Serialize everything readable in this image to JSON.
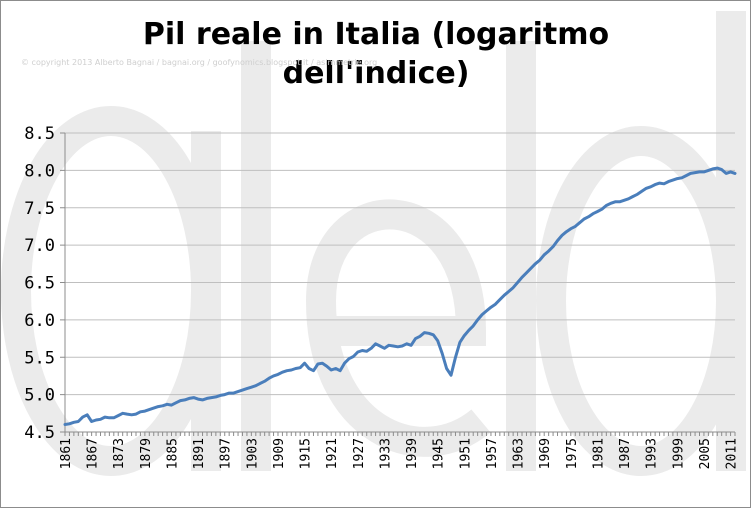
{
  "colors": {
    "series": "#4a7ebb",
    "grid": "#bfbfbf",
    "axis": "#8c8c8c",
    "watermark": "#ebebeb"
  },
  "header": {
    "title": "Pil reale in Italia (logaritmo dell'indice)",
    "copyright": "© copyright 2013 Alberto Bagnai / bagnai.org / goofynomics.blogspot.it / asimmetrie.org"
  },
  "watermark": {
    "text": "a/e/d"
  },
  "chart_data": {
    "type": "line",
    "title": "Pil reale in Italia (logaritmo dell'indice)",
    "xlabel": "",
    "ylabel": "",
    "ylim": [
      4.5,
      8.5
    ],
    "yticks": [
      "4.5",
      "5.0",
      "5.5",
      "6.0",
      "6.5",
      "7.0",
      "7.5",
      "8.0",
      "8.5"
    ],
    "xlim": [
      1861,
      2012
    ],
    "xticks": [
      "1861",
      "1867",
      "1873",
      "1879",
      "1885",
      "1891",
      "1897",
      "1903",
      "1909",
      "1915",
      "1921",
      "1927",
      "1933",
      "1939",
      "1945",
      "1951",
      "1957",
      "1963",
      "1969",
      "1975",
      "1981",
      "1987",
      "1993",
      "1999",
      "2005",
      "2011"
    ],
    "grid": true,
    "legend": "none",
    "series": [
      {
        "points": [
          [
            1861,
            4.6
          ],
          [
            1862,
            4.61
          ],
          [
            1863,
            4.63
          ],
          [
            1864,
            4.64
          ],
          [
            1865,
            4.7
          ],
          [
            1866,
            4.73
          ],
          [
            1867,
            4.64
          ],
          [
            1868,
            4.66
          ],
          [
            1869,
            4.67
          ],
          [
            1870,
            4.7
          ],
          [
            1871,
            4.69
          ],
          [
            1872,
            4.69
          ],
          [
            1873,
            4.72
          ],
          [
            1874,
            4.75
          ],
          [
            1875,
            4.74
          ],
          [
            1876,
            4.73
          ],
          [
            1877,
            4.74
          ],
          [
            1878,
            4.77
          ],
          [
            1879,
            4.78
          ],
          [
            1880,
            4.8
          ],
          [
            1881,
            4.82
          ],
          [
            1882,
            4.84
          ],
          [
            1883,
            4.85
          ],
          [
            1884,
            4.87
          ],
          [
            1885,
            4.86
          ],
          [
            1886,
            4.89
          ],
          [
            1887,
            4.92
          ],
          [
            1888,
            4.93
          ],
          [
            1889,
            4.95
          ],
          [
            1890,
            4.96
          ],
          [
            1891,
            4.94
          ],
          [
            1892,
            4.93
          ],
          [
            1893,
            4.95
          ],
          [
            1894,
            4.96
          ],
          [
            1895,
            4.97
          ],
          [
            1896,
            4.99
          ],
          [
            1897,
            5.0
          ],
          [
            1898,
            5.02
          ],
          [
            1899,
            5.02
          ],
          [
            1900,
            5.04
          ],
          [
            1901,
            5.06
          ],
          [
            1902,
            5.08
          ],
          [
            1903,
            5.1
          ],
          [
            1904,
            5.12
          ],
          [
            1905,
            5.15
          ],
          [
            1906,
            5.18
          ],
          [
            1907,
            5.22
          ],
          [
            1908,
            5.25
          ],
          [
            1909,
            5.27
          ],
          [
            1910,
            5.3
          ],
          [
            1911,
            5.32
          ],
          [
            1912,
            5.33
          ],
          [
            1913,
            5.35
          ],
          [
            1914,
            5.36
          ],
          [
            1915,
            5.42
          ],
          [
            1916,
            5.35
          ],
          [
            1917,
            5.32
          ],
          [
            1918,
            5.41
          ],
          [
            1919,
            5.42
          ],
          [
            1920,
            5.38
          ],
          [
            1921,
            5.33
          ],
          [
            1922,
            5.35
          ],
          [
            1923,
            5.32
          ],
          [
            1924,
            5.42
          ],
          [
            1925,
            5.48
          ],
          [
            1926,
            5.51
          ],
          [
            1927,
            5.57
          ],
          [
            1928,
            5.59
          ],
          [
            1929,
            5.58
          ],
          [
            1930,
            5.62
          ],
          [
            1931,
            5.68
          ],
          [
            1932,
            5.65
          ],
          [
            1933,
            5.62
          ],
          [
            1934,
            5.66
          ],
          [
            1935,
            5.65
          ],
          [
            1936,
            5.64
          ],
          [
            1937,
            5.65
          ],
          [
            1938,
            5.68
          ],
          [
            1939,
            5.66
          ],
          [
            1940,
            5.75
          ],
          [
            1941,
            5.78
          ],
          [
            1942,
            5.83
          ],
          [
            1943,
            5.82
          ],
          [
            1944,
            5.8
          ],
          [
            1945,
            5.72
          ],
          [
            1946,
            5.55
          ],
          [
            1947,
            5.35
          ],
          [
            1948,
            5.26
          ],
          [
            1949,
            5.5
          ],
          [
            1950,
            5.7
          ],
          [
            1951,
            5.79
          ],
          [
            1952,
            5.86
          ],
          [
            1953,
            5.92
          ],
          [
            1954,
            6.0
          ],
          [
            1955,
            6.07
          ],
          [
            1956,
            6.12
          ],
          [
            1957,
            6.17
          ],
          [
            1958,
            6.21
          ],
          [
            1959,
            6.27
          ],
          [
            1960,
            6.33
          ],
          [
            1961,
            6.38
          ],
          [
            1962,
            6.43
          ],
          [
            1963,
            6.5
          ],
          [
            1964,
            6.57
          ],
          [
            1965,
            6.63
          ],
          [
            1966,
            6.69
          ],
          [
            1967,
            6.75
          ],
          [
            1968,
            6.8
          ],
          [
            1969,
            6.87
          ],
          [
            1970,
            6.92
          ],
          [
            1971,
            6.98
          ],
          [
            1972,
            7.06
          ],
          [
            1973,
            7.13
          ],
          [
            1974,
            7.18
          ],
          [
            1975,
            7.22
          ],
          [
            1976,
            7.25
          ],
          [
            1977,
            7.3
          ],
          [
            1978,
            7.35
          ],
          [
            1979,
            7.38
          ],
          [
            1980,
            7.42
          ],
          [
            1981,
            7.45
          ],
          [
            1982,
            7.48
          ],
          [
            1983,
            7.53
          ],
          [
            1984,
            7.56
          ],
          [
            1985,
            7.58
          ],
          [
            1986,
            7.58
          ],
          [
            1987,
            7.6
          ],
          [
            1988,
            7.62
          ],
          [
            1989,
            7.65
          ],
          [
            1990,
            7.68
          ],
          [
            1991,
            7.72
          ],
          [
            1992,
            7.76
          ],
          [
            1993,
            7.78
          ],
          [
            1994,
            7.81
          ],
          [
            1995,
            7.83
          ],
          [
            1996,
            7.82
          ],
          [
            1997,
            7.85
          ],
          [
            1998,
            7.87
          ],
          [
            1999,
            7.89
          ],
          [
            2000,
            7.9
          ],
          [
            2001,
            7.93
          ],
          [
            2002,
            7.96
          ],
          [
            2003,
            7.97
          ],
          [
            2004,
            7.98
          ],
          [
            2005,
            7.98
          ],
          [
            2006,
            8.0
          ],
          [
            2007,
            8.02
          ],
          [
            2008,
            8.03
          ],
          [
            2009,
            8.01
          ],
          [
            2010,
            7.96
          ],
          [
            2011,
            7.98
          ],
          [
            2012,
            7.96
          ]
        ]
      }
    ]
  }
}
